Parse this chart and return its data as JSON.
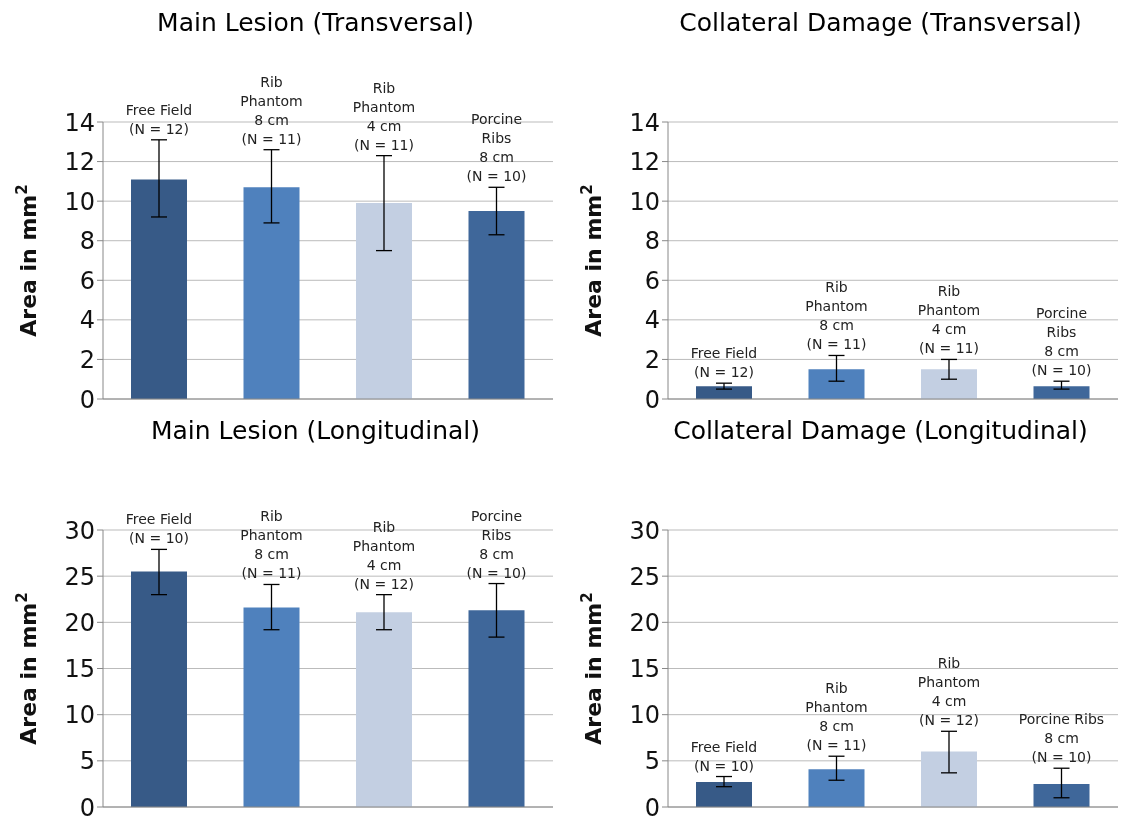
{
  "chart_data": [
    {
      "type": "bar",
      "title": "Main Lesion (Transversal)",
      "ylabel": "Area in mm$^{2}$",
      "categories": [
        "Free Field\n(N = 12)",
        "Rib\nPhantom\n8 cm\n(N = 11)",
        "Rib\nPhantom\n4 cm\n(N = 11)",
        "Porcine\nRibs\n8 cm\n(N = 10)"
      ],
      "values": [
        11.1,
        10.7,
        9.9,
        9.5
      ],
      "errors": [
        [
          9.2,
          13.1
        ],
        [
          8.9,
          12.6
        ],
        [
          7.5,
          12.3
        ],
        [
          8.3,
          10.7
        ]
      ],
      "colors": [
        "#375a87",
        "#4f81bd",
        "#c3cfe2",
        "#3f679a"
      ],
      "ylim": [
        0,
        14
      ],
      "yticks": [
        0,
        2,
        4,
        6,
        8,
        10,
        12,
        14
      ],
      "grid": "y",
      "tick_labels": "y"
    },
    {
      "type": "bar",
      "title": "Collateral Damage (Transversal)",
      "ylabel": "Area in mm$^{2}$",
      "categories": [
        "Free Field\n(N = 12)",
        "Rib\nPhantom\n8 cm\n(N = 11)",
        "Rib\nPhantom\n4 cm\n(N = 11)",
        "Porcine\nRibs\n8 cm\n(N = 10)"
      ],
      "values": [
        0.65,
        1.5,
        1.5,
        0.65
      ],
      "errors": [
        [
          0.5,
          0.8
        ],
        [
          0.9,
          2.2
        ],
        [
          1.0,
          2.0
        ],
        [
          0.5,
          0.9
        ]
      ],
      "colors": [
        "#375a87",
        "#4f81bd",
        "#c3cfe2",
        "#3f679a"
      ],
      "ylim": [
        0,
        14
      ],
      "yticks": [
        0,
        2,
        4,
        6,
        8,
        10,
        12,
        14
      ],
      "grid": "y",
      "tick_labels": "y"
    },
    {
      "type": "bar",
      "title": "Main Lesion (Longitudinal)",
      "ylabel": "Area in mm$^{2}$",
      "categories": [
        "Free Field\n(N = 10)",
        "Rib\nPhantom\n8 cm\n(N = 11)",
        "Rib\nPhantom\n4 cm\n(N = 12)",
        "Porcine\nRibs\n8 cm\n(N = 10)"
      ],
      "values": [
        25.5,
        21.6,
        21.1,
        21.3
      ],
      "errors": [
        [
          23.0,
          27.9
        ],
        [
          19.2,
          24.1
        ],
        [
          19.2,
          23.0
        ],
        [
          18.4,
          24.2
        ]
      ],
      "colors": [
        "#375a87",
        "#4f81bd",
        "#c3cfe2",
        "#3f679a"
      ],
      "ylim": [
        0,
        30
      ],
      "yticks": [
        0,
        5,
        10,
        15,
        20,
        25,
        30
      ],
      "grid": "y",
      "tick_labels": "y"
    },
    {
      "type": "bar",
      "title": "Collateral Damage (Longitudinal)",
      "ylabel": "Area in mm$^{2}$",
      "categories": [
        "Free Field\n(N = 10)",
        "Rib\nPhantom\n8 cm\n(N = 11)",
        "Rib\nPhantom\n4 cm\n(N = 12)",
        "Porcine Ribs\n8 cm\n(N = 10)"
      ],
      "values": [
        2.7,
        4.1,
        6.0,
        2.5
      ],
      "errors": [
        [
          2.2,
          3.3
        ],
        [
          2.9,
          5.5
        ],
        [
          3.7,
          8.2
        ],
        [
          1.0,
          4.2
        ]
      ],
      "colors": [
        "#375a87",
        "#4f81bd",
        "#c3cfe2",
        "#3f679a"
      ],
      "ylim": [
        0,
        30
      ],
      "yticks": [
        0,
        5,
        10,
        15,
        20,
        25,
        30
      ],
      "grid": "y",
      "tick_labels": "y"
    }
  ]
}
